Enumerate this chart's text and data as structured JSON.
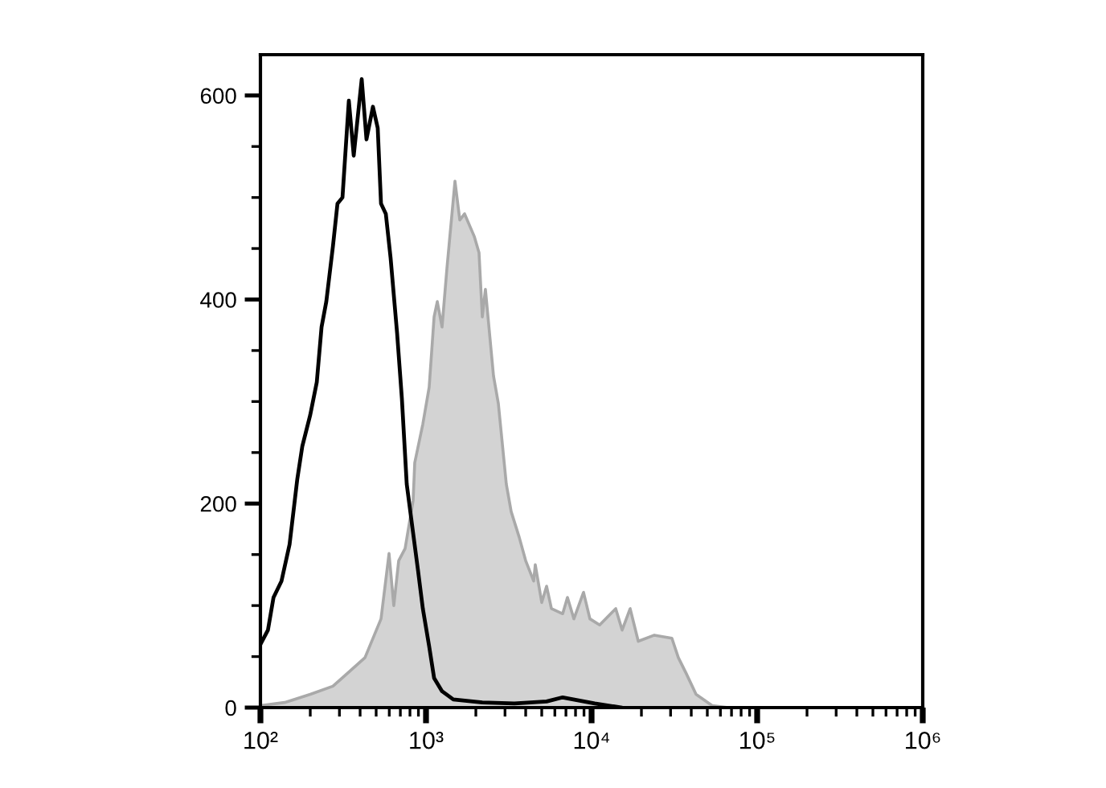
{
  "chart_data": {
    "type": "area",
    "log": "x",
    "xlim": [
      100,
      1000000
    ],
    "ylim": [
      0,
      640
    ],
    "xticks": [
      {
        "value": 100,
        "label": "10²"
      },
      {
        "value": 200,
        "label": null
      },
      {
        "value": 300,
        "label": null
      },
      {
        "value": 400,
        "label": null
      },
      {
        "value": 500,
        "label": null
      },
      {
        "value": 600,
        "label": null
      },
      {
        "value": 700,
        "label": null
      },
      {
        "value": 800,
        "label": null
      },
      {
        "value": 900,
        "label": null
      },
      {
        "value": 1000,
        "label": "10³"
      },
      {
        "value": 2000,
        "label": null
      },
      {
        "value": 3000,
        "label": null
      },
      {
        "value": 4000,
        "label": null
      },
      {
        "value": 5000,
        "label": null
      },
      {
        "value": 6000,
        "label": null
      },
      {
        "value": 7000,
        "label": null
      },
      {
        "value": 8000,
        "label": null
      },
      {
        "value": 9000,
        "label": null
      },
      {
        "value": 10000,
        "label": "10⁴"
      },
      {
        "value": 20000,
        "label": null
      },
      {
        "value": 30000,
        "label": null
      },
      {
        "value": 40000,
        "label": null
      },
      {
        "value": 50000,
        "label": null
      },
      {
        "value": 60000,
        "label": null
      },
      {
        "value": 70000,
        "label": null
      },
      {
        "value": 80000,
        "label": null
      },
      {
        "value": 90000,
        "label": null
      },
      {
        "value": 100000,
        "label": "10⁵"
      },
      {
        "value": 200000,
        "label": null
      },
      {
        "value": 300000,
        "label": null
      },
      {
        "value": 400000,
        "label": null
      },
      {
        "value": 500000,
        "label": null
      },
      {
        "value": 600000,
        "label": null
      },
      {
        "value": 700000,
        "label": null
      },
      {
        "value": 800000,
        "label": null
      },
      {
        "value": 900000,
        "label": null
      },
      {
        "value": 1000000,
        "label": "10⁶"
      }
    ],
    "yticks": [
      0,
      {
        "value": 50,
        "label": null
      },
      {
        "value": 100,
        "label": null
      },
      {
        "value": 150,
        "label": null
      },
      200,
      {
        "value": 250,
        "label": null
      },
      {
        "value": 300,
        "label": null
      },
      {
        "value": 350,
        "label": null
      },
      400,
      {
        "value": 450,
        "label": null
      },
      {
        "value": 500,
        "label": null
      },
      {
        "value": 550,
        "label": null
      },
      600
    ],
    "series": [
      {
        "color": "#d3d3d3",
        "x": [
          100,
          140,
          200,
          274,
          327,
          428,
          535,
          598,
          639,
          684,
          748,
          836,
          855,
          957,
          1045,
          1119,
          1170,
          1250,
          1337,
          1496,
          1600,
          1710,
          1955,
          2090,
          2188,
          2285,
          2557,
          2735,
          3055,
          3270,
          3655,
          4000,
          4470,
          4570,
          5000,
          5350,
          5720,
          6690,
          7150,
          7820,
          8940,
          9770,
          11190,
          13990,
          15290,
          17100,
          19140,
          23950,
          30550,
          33420,
          37400,
          42760,
          53460,
          66840
        ],
        "values": [
          2,
          5,
          13,
          21,
          32,
          49,
          87,
          151,
          100,
          144,
          156,
          203,
          240,
          278,
          314,
          383,
          398,
          373,
          430,
          516,
          478,
          484,
          462,
          446,
          383,
          410,
          325,
          298,
          219,
          192,
          167,
          144,
          124,
          140,
          103,
          119,
          97,
          92,
          108,
          87,
          113,
          87,
          81,
          97,
          76,
          97,
          65,
          71,
          68,
          49,
          33,
          13,
          2,
          0
        ]
      },
      {
        "type": "line",
        "color": "#000000",
        "x": [
          100,
          111,
          120,
          134,
          150,
          167,
          179,
          200,
          219,
          234,
          250,
          274,
          292,
          313,
          342,
          366,
          409,
          437,
          478,
          511,
          535,
          572,
          611,
          669,
          715,
          765,
          836,
          894,
          957,
          1045,
          1119,
          1250,
          1462,
          2188,
          3420,
          5350,
          6690,
          10450,
          15280
        ],
        "values": [
          62,
          76,
          108,
          124,
          160,
          224,
          256,
          287,
          319,
          373,
          398,
          452,
          494,
          500,
          595,
          541,
          616,
          557,
          589,
          568,
          494,
          484,
          441,
          367,
          303,
          219,
          171,
          135,
          97,
          60,
          29,
          16,
          8,
          5,
          4,
          6,
          10,
          4,
          0
        ]
      }
    ]
  }
}
